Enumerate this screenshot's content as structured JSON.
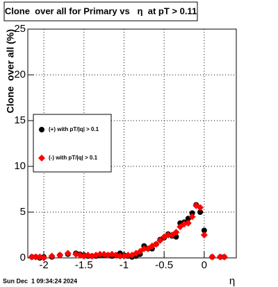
{
  "chart_data": {
    "type": "scatter",
    "title": "Clone  over all for Primary vs   η  at pT > 0.11",
    "x_label": "η",
    "y_label": "Clone  over all (%)",
    "timestamp": "Sun Dec  1 09:34:24 2024",
    "xlim": [
      -2.2,
      0.4
    ],
    "ylim": [
      0,
      25
    ],
    "xticks": [
      -2,
      -1.5,
      -1,
      -0.5,
      0
    ],
    "yticks": [
      0,
      5,
      10,
      15,
      20,
      25
    ],
    "grid": true,
    "legend": "left",
    "x": [
      -2.15,
      -2.1,
      -2.05,
      -2.0,
      -1.9,
      -1.8,
      -1.7,
      -1.6,
      -1.55,
      -1.5,
      -1.45,
      -1.4,
      -1.35,
      -1.3,
      -1.25,
      -1.2,
      -1.15,
      -1.1,
      -1.05,
      -1.0,
      -0.95,
      -0.9,
      -0.85,
      -0.8,
      -0.75,
      -0.7,
      -0.65,
      -0.6,
      -0.55,
      -0.5,
      -0.45,
      -0.4,
      -0.35,
      -0.3,
      -0.25,
      -0.2,
      -0.15,
      -0.1,
      -0.05,
      0.0,
      0.1,
      0.2,
      0.25
    ],
    "series": [
      {
        "name": "(+) with pT/|q| > 0.1",
        "color": "#000000",
        "marker": "circle",
        "values": [
          0.1,
          0.1,
          0,
          0.1,
          0.1,
          0.3,
          0.4,
          0.5,
          0.4,
          0.3,
          0.2,
          0.2,
          0.2,
          0.3,
          0.3,
          0.3,
          0.2,
          0.3,
          0.5,
          0.3,
          0.2,
          0.1,
          0.2,
          0.4,
          1.3,
          1.0,
          1.0,
          1.5,
          2.0,
          2.2,
          2.6,
          2.4,
          2.3,
          3.8,
          3.9,
          4.3,
          4.9,
          5.8,
          5.0,
          3.0,
          0.1,
          0.1,
          0.1
        ]
      },
      {
        "name": "(-) with pT/|q| > 0.1",
        "color": "#ff0000",
        "marker": "diamond",
        "values": [
          0.1,
          0.1,
          0.1,
          0,
          0.2,
          0.3,
          0.5,
          0.4,
          0.3,
          0.2,
          0.3,
          0.2,
          0.3,
          0.4,
          0.4,
          0.3,
          0.4,
          0.3,
          0.2,
          0.2,
          0.3,
          0.3,
          0.5,
          0.7,
          1.0,
          1.0,
          1.3,
          1.5,
          1.9,
          2.3,
          2.5,
          2.5,
          2.8,
          3.4,
          3.7,
          3.8,
          4.5,
          5.7,
          5.5,
          2.5,
          0.1,
          0.1,
          0.1
        ]
      }
    ]
  }
}
